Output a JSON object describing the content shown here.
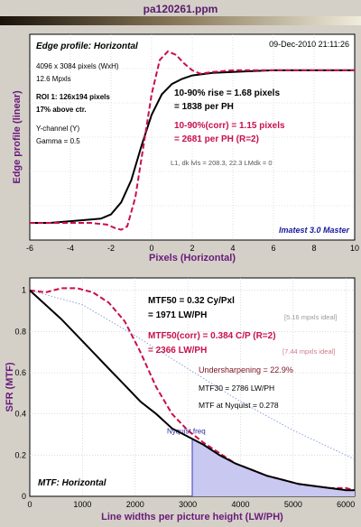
{
  "window": {
    "title": "pa120261.ppm"
  },
  "colors": {
    "measured": "#000000",
    "corrected": "#c8104a",
    "ideal": "#8aa0e0",
    "purple_text": "#6a1a7a",
    "nyquist_fill": "#c8c8f0"
  },
  "chart_data": [
    {
      "type": "line",
      "title": "Edge profile: Horizontal",
      "date": "09-Dec-2010 21:11:26",
      "xlabel": "Pixels (Horizontal)",
      "ylabel": "Edge profile (linear)",
      "xlim": [
        -6,
        10
      ],
      "ylim": [
        0,
        1.2
      ],
      "xticks": [
        "-6",
        "-4",
        "-2",
        "0",
        "2",
        "4",
        "6",
        "8",
        "10"
      ],
      "info_lines": [
        "4096 x 3084 pixels (WxH)",
        "12.6 Mpxls",
        "ROI 1:  126x194 pixels",
        "17% above ctr.",
        "Y-channel (Y)",
        "Gamma = 0.5"
      ],
      "rise_lines": [
        "10-90% rise = 1.68 pixels",
        "= 1838 per PH"
      ],
      "corr_lines": [
        "10-90%(corr) = 1.15 pixels",
        "= 2681 per PH  (R=2)"
      ],
      "lum_line": "L1, dk lvls = 208.3, 22.3   LMdk = 0",
      "footer": "Imatest 3.0 Master",
      "series": [
        {
          "name": "Edge profile",
          "style": "solid",
          "x": [
            -6,
            -5,
            -4,
            -3,
            -2.5,
            -2,
            -1.5,
            -1,
            -0.5,
            0,
            0.5,
            1,
            1.5,
            2,
            3,
            4,
            5,
            6,
            8,
            10
          ],
          "y": [
            0.1,
            0.1,
            0.11,
            0.12,
            0.125,
            0.15,
            0.22,
            0.35,
            0.55,
            0.73,
            0.85,
            0.91,
            0.94,
            0.96,
            0.975,
            0.98,
            0.985,
            0.99,
            0.99,
            0.99
          ]
        },
        {
          "name": "Edge profile (corr)",
          "style": "dashed",
          "x": [
            -6,
            -4,
            -3,
            -2.2,
            -1.8,
            -1.5,
            -1.2,
            -0.8,
            -0.4,
            0,
            0.4,
            0.8,
            1.2,
            1.6,
            2,
            2.4,
            3,
            4,
            6,
            8,
            10
          ],
          "y": [
            0.1,
            0.1,
            0.1,
            0.09,
            0.07,
            0.06,
            0.08,
            0.25,
            0.55,
            0.85,
            1.05,
            1.1,
            1.08,
            1.03,
            0.99,
            0.97,
            0.98,
            0.99,
            0.99,
            0.99,
            0.99
          ]
        }
      ]
    },
    {
      "type": "line",
      "title": "MTF: Horizontal",
      "xlabel": "Line widths per picture height (LW/PH)",
      "ylabel": "SFR (MTF)",
      "xlim": [
        0,
        6168
      ],
      "ylim": [
        0,
        1.06
      ],
      "xticks": [
        "0",
        "1000",
        "2000",
        "3000",
        "4000",
        "5000",
        "6000"
      ],
      "yticks": [
        "0",
        "0.2",
        "0.4",
        "0.6",
        "0.8",
        "1"
      ],
      "nyquist": {
        "x": 3084,
        "label": "Nyquist freq"
      },
      "mtf50_lines": [
        "MTF50 = 0.32 Cy/Pxl",
        "= 1971 LW/PH"
      ],
      "mtf50_ideal": "[5.16 mpxls ideal]",
      "mtf50corr_lines": [
        "MTF50(corr) = 0.384 C/P  (R=2)",
        "= 2366 LW/PH"
      ],
      "mtf50corr_ideal": "[7.44 mpxls ideal]",
      "undersharpening": "Undersharpening = 22.9%",
      "mtf30": "MTF30 = 2786 LW/PH",
      "mtf_nyquist": "MTF at Nyquist = 0.278",
      "series": [
        {
          "name": "MTF",
          "style": "solid",
          "x": [
            0,
            300,
            600,
            900,
            1200,
            1500,
            1800,
            2100,
            2400,
            2700,
            3000,
            3300,
            3600,
            3900,
            4200,
            4500,
            4800,
            5100,
            5400,
            5700,
            6000,
            6168
          ],
          "y": [
            1.0,
            0.93,
            0.86,
            0.78,
            0.7,
            0.62,
            0.54,
            0.46,
            0.4,
            0.33,
            0.29,
            0.25,
            0.2,
            0.16,
            0.13,
            0.1,
            0.08,
            0.06,
            0.05,
            0.04,
            0.03,
            0.03
          ]
        },
        {
          "name": "MTF (corr)",
          "style": "dashed",
          "x": [
            0,
            300,
            600,
            900,
            1200,
            1500,
            1800,
            2100,
            2400,
            2700,
            3000,
            3300,
            3600,
            3900,
            4200,
            4500,
            4800,
            5100,
            5400,
            5700,
            6000,
            6168
          ],
          "y": [
            1.0,
            0.99,
            1.01,
            1.01,
            0.99,
            0.94,
            0.85,
            0.7,
            0.53,
            0.4,
            0.32,
            0.26,
            0.21,
            0.16,
            0.13,
            0.1,
            0.08,
            0.06,
            0.05,
            0.04,
            0.04,
            0.03
          ]
        },
        {
          "name": "Ideal",
          "style": "dotted",
          "x": [
            0,
            1000,
            2000,
            3000,
            4000,
            5000,
            6168
          ],
          "y": [
            1.0,
            0.93,
            0.78,
            0.62,
            0.46,
            0.32,
            0.18
          ]
        }
      ]
    }
  ]
}
